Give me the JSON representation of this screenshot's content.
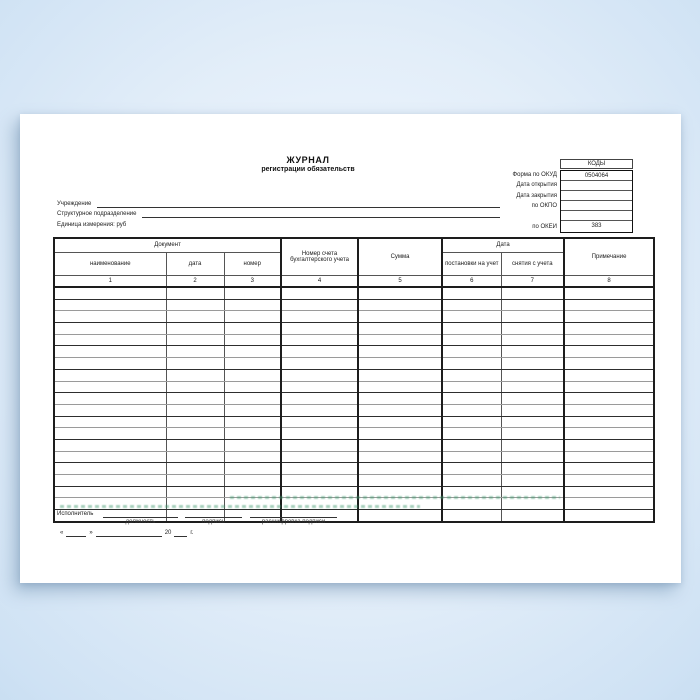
{
  "form": {
    "title": "ЖУРНАЛ",
    "subtitle": "регистрации обязательств"
  },
  "codes_box": {
    "header": "КОДЫ",
    "rows": [
      {
        "label": "Форма по ОКУД",
        "value": "0504064"
      },
      {
        "label": "Дата открытия",
        "value": ""
      },
      {
        "label": "Дата закрытия",
        "value": ""
      },
      {
        "label": "по ОКПО",
        "value": ""
      },
      {
        "label": "",
        "value": ""
      },
      {
        "label": "по ОКЕИ",
        "value": "383"
      }
    ]
  },
  "info_fields": {
    "institution_label": "Учреждение",
    "department_label": "Структурное подразделение",
    "unit_label": "Единица измерения: руб"
  },
  "table": {
    "groups": {
      "document": "Документ",
      "date": "Дата"
    },
    "columns": [
      {
        "title": "наименование",
        "num": "1"
      },
      {
        "title": "дата",
        "num": "2"
      },
      {
        "title": "номер",
        "num": "3"
      },
      {
        "title": "Номер счета бухгалтерского учета",
        "num": "4"
      },
      {
        "title": "Сумма",
        "num": "5"
      },
      {
        "title": "постановки на учет",
        "num": "6"
      },
      {
        "title": "снятия с учета",
        "num": "7"
      },
      {
        "title": "Примечание",
        "num": "8"
      }
    ],
    "body_row_count": 20
  },
  "footer": {
    "executor_label": "Исполнитель",
    "position_caption": "должность",
    "signature_caption": "подпись",
    "transcript_caption": "расшифровка подписи",
    "quote_open": "«",
    "quote_close": "»",
    "year_text": "20",
    "year_suffix": "г."
  },
  "colors": {
    "background_outer": "#b7d3ec",
    "background_inner": "#f2f8fe",
    "page": "#ffffff",
    "table_line": "#1d1d1d",
    "watermark_green": "#3f9a6e"
  }
}
